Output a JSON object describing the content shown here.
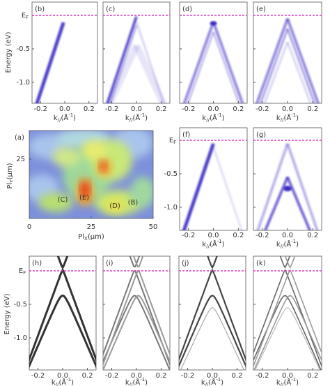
{
  "energy_axis": {
    "title": "Energy (eV)",
    "ef": {
      "main": "E",
      "sub": "F"
    },
    "ticks": [
      "-0.5",
      "-1.0"
    ]
  },
  "k_axis": {
    "ticks": [
      "-0.2",
      "0.0",
      "0.2"
    ],
    "title": {
      "main": "k",
      "sub": "//",
      "unit": "(Å",
      "sup": "-1",
      "close": ")"
    }
  },
  "top_row": {
    "panels": [
      {
        "label": "(b)"
      },
      {
        "label": "(c)"
      },
      {
        "label": "(d)"
      },
      {
        "label": "(e)"
      }
    ]
  },
  "map": {
    "label": "(a)",
    "x_title": {
      "main": "Pl",
      "sub": "X",
      "unit": "(μm)"
    },
    "y_title": {
      "main": "Pl",
      "sub": "Y",
      "unit": "(μm)"
    },
    "xticks": [
      "0",
      "25",
      "50"
    ],
    "yticks": [
      "25"
    ],
    "spots": [
      "(C)",
      "(E)",
      "(D)",
      "(B)"
    ]
  },
  "middle_row": {
    "panels": [
      {
        "label": "(f)"
      },
      {
        "label": "(g)"
      }
    ]
  },
  "bottom_row": {
    "panels": [
      {
        "label": "(h)"
      },
      {
        "label": "(i)"
      },
      {
        "label": "(j)"
      },
      {
        "label": "(k)"
      }
    ]
  }
}
